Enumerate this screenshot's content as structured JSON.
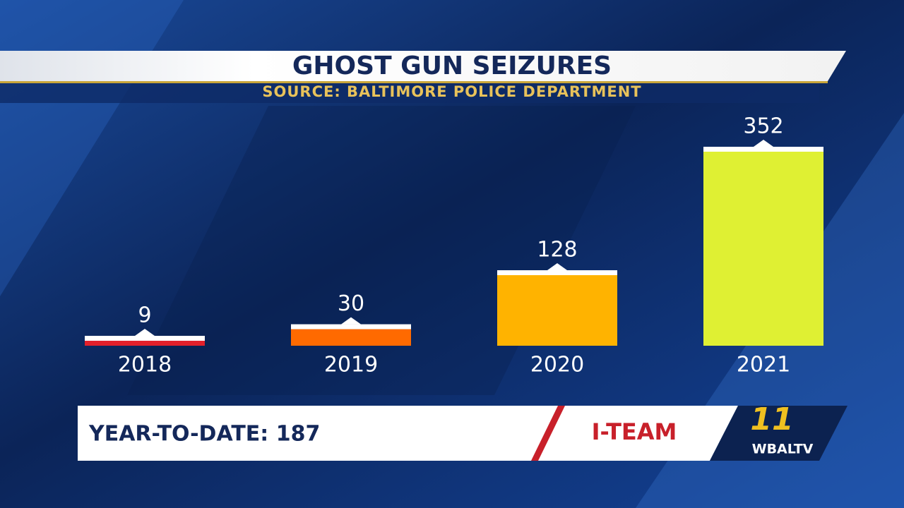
{
  "chart_data": {
    "type": "bar",
    "title": "GHOST GUN SEIZURES",
    "subtitle": "SOURCE: BALTIMORE POLICE DEPARTMENT",
    "categories": [
      "2018",
      "2019",
      "2020",
      "2021"
    ],
    "values": [
      9,
      30,
      128,
      352
    ],
    "colors": [
      "#e3202b",
      "#ff6a00",
      "#ffb300",
      "#dff033"
    ]
  },
  "banner": {
    "text": "YEAR-TO-DATE: 187",
    "tag": "I-TEAM"
  },
  "logo": {
    "number": "11",
    "station": "WBALTV"
  }
}
